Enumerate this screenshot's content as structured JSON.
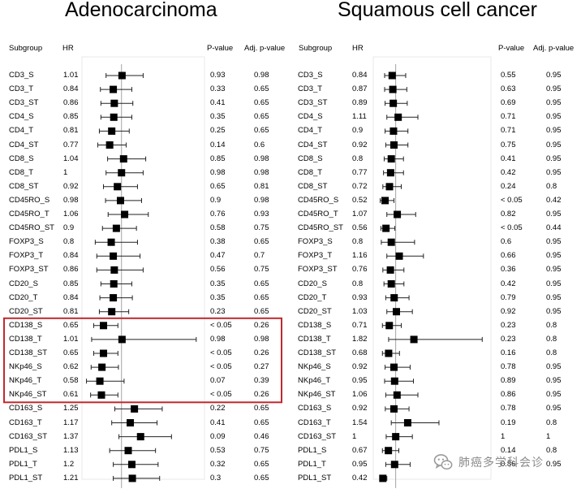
{
  "chart_data": [
    {
      "type": "forest",
      "title": "Adenocarcinoma",
      "columns": [
        "Subgroup",
        "HR",
        "P-value",
        "Adj. p-value"
      ],
      "xticks": [
        "0.5",
        "1",
        "1.5",
        "2",
        "2.5"
      ],
      "xlim": [
        0.4,
        2.6
      ],
      "reference_line": 1,
      "highlighted_rows": [
        "CD138_S",
        "CD138_T",
        "CD138_ST",
        "NKp46_S",
        "NKp46_T",
        "NKp46_ST"
      ],
      "highlight_color": "#c0292e",
      "rows": [
        {
          "subgroup": "CD3_S",
          "hr": "1.01",
          "p": "0.93",
          "adj": "0.98",
          "est": 1.01,
          "lo": 0.7,
          "hi": 1.42
        },
        {
          "subgroup": "CD3_T",
          "hr": "0.84",
          "p": "0.33",
          "adj": "0.65",
          "est": 0.84,
          "lo": 0.59,
          "hi": 1.2
        },
        {
          "subgroup": "CD3_ST",
          "hr": "0.86",
          "p": "0.41",
          "adj": "0.65",
          "est": 0.86,
          "lo": 0.6,
          "hi": 1.22
        },
        {
          "subgroup": "CD4_S",
          "hr": "0.85",
          "p": "0.35",
          "adj": "0.65",
          "est": 0.85,
          "lo": 0.6,
          "hi": 1.2
        },
        {
          "subgroup": "CD4_T",
          "hr": "0.81",
          "p": "0.25",
          "adj": "0.65",
          "est": 0.81,
          "lo": 0.57,
          "hi": 1.15
        },
        {
          "subgroup": "CD4_ST",
          "hr": "0.77",
          "p": "0.14",
          "adj": "0.6",
          "est": 0.77,
          "lo": 0.54,
          "hi": 1.09
        },
        {
          "subgroup": "CD8_S",
          "hr": "1.04",
          "p": "0.85",
          "adj": "0.98",
          "est": 1.04,
          "lo": 0.73,
          "hi": 1.47
        },
        {
          "subgroup": "CD8_T",
          "hr": "1",
          "p": "0.98",
          "adj": "0.98",
          "est": 1.0,
          "lo": 0.7,
          "hi": 1.42
        },
        {
          "subgroup": "CD8_ST",
          "hr": "0.92",
          "p": "0.65",
          "adj": "0.81",
          "est": 0.92,
          "lo": 0.65,
          "hi": 1.31
        },
        {
          "subgroup": "CD45RO_S",
          "hr": "0.98",
          "p": "0.9",
          "adj": "0.98",
          "est": 0.98,
          "lo": 0.69,
          "hi": 1.39
        },
        {
          "subgroup": "CD45RO_T",
          "hr": "1.06",
          "p": "0.76",
          "adj": "0.93",
          "est": 1.06,
          "lo": 0.74,
          "hi": 1.52
        },
        {
          "subgroup": "CD45RO_ST",
          "hr": "0.9",
          "p": "0.58",
          "adj": "0.75",
          "est": 0.9,
          "lo": 0.63,
          "hi": 1.29
        },
        {
          "subgroup": "FOXP3_S",
          "hr": "0.8",
          "p": "0.38",
          "adj": "0.65",
          "est": 0.8,
          "lo": 0.49,
          "hi": 1.31
        },
        {
          "subgroup": "FOXP3_T",
          "hr": "0.84",
          "p": "0.47",
          "adj": "0.7",
          "est": 0.84,
          "lo": 0.52,
          "hi": 1.36
        },
        {
          "subgroup": "FOXP3_ST",
          "hr": "0.86",
          "p": "0.56",
          "adj": "0.75",
          "est": 0.86,
          "lo": 0.52,
          "hi": 1.42
        },
        {
          "subgroup": "CD20_S",
          "hr": "0.85",
          "p": "0.35",
          "adj": "0.65",
          "est": 0.85,
          "lo": 0.6,
          "hi": 1.2
        },
        {
          "subgroup": "CD20_T",
          "hr": "0.84",
          "p": "0.35",
          "adj": "0.65",
          "est": 0.84,
          "lo": 0.58,
          "hi": 1.21
        },
        {
          "subgroup": "CD20_ST",
          "hr": "0.81",
          "p": "0.23",
          "adj": "0.65",
          "est": 0.81,
          "lo": 0.57,
          "hi": 1.14
        },
        {
          "subgroup": "CD138_S",
          "hr": "0.65",
          "p": "< 0.05",
          "adj": "0.26",
          "est": 0.65,
          "lo": 0.46,
          "hi": 0.93
        },
        {
          "subgroup": "CD138_T",
          "hr": "1.01",
          "p": "0.98",
          "adj": "0.98",
          "est": 1.01,
          "lo": 0.42,
          "hi": 2.45
        },
        {
          "subgroup": "CD138_ST",
          "hr": "0.65",
          "p": "< 0.05",
          "adj": "0.26",
          "est": 0.65,
          "lo": 0.46,
          "hi": 0.93
        },
        {
          "subgroup": "NKp46_S",
          "hr": "0.62",
          "p": "< 0.05",
          "adj": "0.27",
          "est": 0.62,
          "lo": 0.41,
          "hi": 0.94
        },
        {
          "subgroup": "NKp46_T",
          "hr": "0.58",
          "p": "0.07",
          "adj": "0.39",
          "est": 0.58,
          "lo": 0.32,
          "hi": 1.05
        },
        {
          "subgroup": "NKp46_ST",
          "hr": "0.61",
          "p": "< 0.05",
          "adj": "0.26",
          "est": 0.61,
          "lo": 0.4,
          "hi": 0.93
        },
        {
          "subgroup": "CD163_S",
          "hr": "1.25",
          "p": "0.22",
          "adj": "0.65",
          "est": 1.25,
          "lo": 0.87,
          "hi": 1.79
        },
        {
          "subgroup": "CD163_T",
          "hr": "1.17",
          "p": "0.41",
          "adj": "0.65",
          "est": 1.17,
          "lo": 0.81,
          "hi": 1.69
        },
        {
          "subgroup": "CD163_ST",
          "hr": "1.37",
          "p": "0.09",
          "adj": "0.46",
          "est": 1.37,
          "lo": 0.95,
          "hi": 1.97
        },
        {
          "subgroup": "PDL1_S",
          "hr": "1.13",
          "p": "0.53",
          "adj": "0.75",
          "est": 1.13,
          "lo": 0.77,
          "hi": 1.66
        },
        {
          "subgroup": "PDL1_T",
          "hr": "1.2",
          "p": "0.32",
          "adj": "0.65",
          "est": 1.2,
          "lo": 0.84,
          "hi": 1.71
        },
        {
          "subgroup": "PDL1_ST",
          "hr": "1.21",
          "p": "0.3",
          "adj": "0.65",
          "est": 1.21,
          "lo": 0.84,
          "hi": 1.74
        }
      ]
    },
    {
      "type": "forest",
      "title": "Squamous cell cancer",
      "columns": [
        "Subgroup",
        "HR",
        "P-value",
        "Adj. p-value"
      ],
      "xticks": [
        "0.5",
        "1",
        "1.5",
        "2",
        "2.5",
        "3",
        "3.5",
        "4",
        "4.5",
        "5"
      ],
      "xlim": [
        0.3,
        5.3
      ],
      "reference_line": 1,
      "rows": [
        {
          "subgroup": "CD3_S",
          "hr": "0.84",
          "p": "0.55",
          "adj": "0.95",
          "est": 0.84,
          "lo": 0.5,
          "hi": 1.45
        },
        {
          "subgroup": "CD3_T",
          "hr": "0.87",
          "p": "0.63",
          "adj": "0.95",
          "est": 0.87,
          "lo": 0.5,
          "hi": 1.5
        },
        {
          "subgroup": "CD3_ST",
          "hr": "0.89",
          "p": "0.69",
          "adj": "0.95",
          "est": 0.89,
          "lo": 0.52,
          "hi": 1.52
        },
        {
          "subgroup": "CD4_S",
          "hr": "1.11",
          "p": "0.71",
          "adj": "0.95",
          "est": 1.11,
          "lo": 0.6,
          "hi": 2.0
        },
        {
          "subgroup": "CD4_T",
          "hr": "0.9",
          "p": "0.71",
          "adj": "0.95",
          "est": 0.9,
          "lo": 0.52,
          "hi": 1.55
        },
        {
          "subgroup": "CD4_ST",
          "hr": "0.92",
          "p": "0.75",
          "adj": "0.95",
          "est": 0.92,
          "lo": 0.55,
          "hi": 1.55
        },
        {
          "subgroup": "CD8_S",
          "hr": "0.8",
          "p": "0.41",
          "adj": "0.95",
          "est": 0.8,
          "lo": 0.48,
          "hi": 1.35
        },
        {
          "subgroup": "CD8_T",
          "hr": "0.77",
          "p": "0.42",
          "adj": "0.95",
          "est": 0.77,
          "lo": 0.45,
          "hi": 1.35
        },
        {
          "subgroup": "CD8_ST",
          "hr": "0.72",
          "p": "0.24",
          "adj": "0.8",
          "est": 0.72,
          "lo": 0.42,
          "hi": 1.25
        },
        {
          "subgroup": "CD45RO_S",
          "hr": "0.52",
          "p": "< 0.05",
          "adj": "0.42",
          "est": 0.52,
          "lo": 0.3,
          "hi": 0.92
        },
        {
          "subgroup": "CD45RO_T",
          "hr": "1.07",
          "p": "0.82",
          "adj": "0.95",
          "est": 1.07,
          "lo": 0.6,
          "hi": 1.9
        },
        {
          "subgroup": "CD45RO_ST",
          "hr": "0.56",
          "p": "< 0.05",
          "adj": "0.44",
          "est": 0.56,
          "lo": 0.33,
          "hi": 0.96
        },
        {
          "subgroup": "FOXP3_S",
          "hr": "0.8",
          "p": "0.6",
          "adj": "0.95",
          "est": 0.8,
          "lo": 0.35,
          "hi": 1.85
        },
        {
          "subgroup": "FOXP3_T",
          "hr": "1.16",
          "p": "0.66",
          "adj": "0.95",
          "est": 1.16,
          "lo": 0.6,
          "hi": 2.25
        },
        {
          "subgroup": "FOXP3_ST",
          "hr": "0.76",
          "p": "0.36",
          "adj": "0.95",
          "est": 0.76,
          "lo": 0.42,
          "hi": 1.37
        },
        {
          "subgroup": "CD20_S",
          "hr": "0.8",
          "p": "0.42",
          "adj": "0.95",
          "est": 0.8,
          "lo": 0.47,
          "hi": 1.37
        },
        {
          "subgroup": "CD20_T",
          "hr": "0.93",
          "p": "0.79",
          "adj": "0.95",
          "est": 0.93,
          "lo": 0.55,
          "hi": 1.6
        },
        {
          "subgroup": "CD20_ST",
          "hr": "1.03",
          "p": "0.92",
          "adj": "0.95",
          "est": 1.03,
          "lo": 0.6,
          "hi": 1.75
        },
        {
          "subgroup": "CD138_S",
          "hr": "0.71",
          "p": "0.23",
          "adj": "0.8",
          "est": 0.71,
          "lo": 0.4,
          "hi": 1.25
        },
        {
          "subgroup": "CD138_T",
          "hr": "1.82",
          "p": "0.23",
          "adj": "0.8",
          "est": 1.82,
          "lo": 0.68,
          "hi": 4.9
        },
        {
          "subgroup": "CD138_ST",
          "hr": "0.68",
          "p": "0.16",
          "adj": "0.8",
          "est": 0.68,
          "lo": 0.4,
          "hi": 1.17
        },
        {
          "subgroup": "NKp46_S",
          "hr": "0.92",
          "p": "0.78",
          "adj": "0.95",
          "est": 0.92,
          "lo": 0.52,
          "hi": 1.65
        },
        {
          "subgroup": "NKp46_T",
          "hr": "0.95",
          "p": "0.89",
          "adj": "0.95",
          "est": 0.95,
          "lo": 0.5,
          "hi": 1.8
        },
        {
          "subgroup": "NKp46_ST",
          "hr": "1.06",
          "p": "0.86",
          "adj": "0.95",
          "est": 1.06,
          "lo": 0.55,
          "hi": 2.0
        },
        {
          "subgroup": "CD163_S",
          "hr": "0.92",
          "p": "0.78",
          "adj": "0.95",
          "est": 0.92,
          "lo": 0.53,
          "hi": 1.6
        },
        {
          "subgroup": "CD163_T",
          "hr": "1.54",
          "p": "0.19",
          "adj": "0.8",
          "est": 1.54,
          "lo": 0.8,
          "hi": 2.95
        },
        {
          "subgroup": "CD163_ST",
          "hr": "1",
          "p": "1",
          "adj": "1",
          "est": 1.0,
          "lo": 0.57,
          "hi": 1.75
        },
        {
          "subgroup": "PDL1_S",
          "hr": "0.67",
          "p": "0.14",
          "adj": "0.8",
          "est": 0.67,
          "lo": 0.4,
          "hi": 1.14
        },
        {
          "subgroup": "PDL1_T",
          "hr": "0.95",
          "p": "0.86",
          "adj": "0.95",
          "est": 0.95,
          "lo": 0.55,
          "hi": 1.65
        },
        {
          "subgroup": "PDL1_ST",
          "hr": "0.42",
          "p": "",
          "adj": "",
          "est": 0.42,
          "lo": 0.3,
          "hi": 0.6
        }
      ]
    }
  ],
  "watermark": {
    "text": "肺癌多学科会诊",
    "icon": "wechat-icon",
    "color": "#9a9a9a"
  }
}
